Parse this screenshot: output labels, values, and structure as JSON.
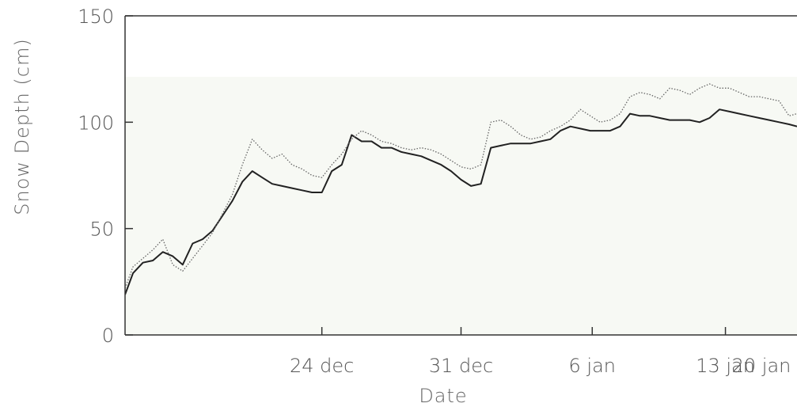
{
  "chart_data": {
    "type": "line",
    "title": "",
    "xlabel": "Date",
    "ylabel": "Snow Depth (cm)",
    "ylim": [
      0,
      150
    ],
    "xlim": [
      -4.9,
      28.9
    ],
    "y_ticks": [
      "0",
      "50",
      "100",
      "150"
    ],
    "x_ticks": [
      {
        "label": "24 dec",
        "x": 5
      },
      {
        "label": "31 dec",
        "x": 12
      },
      {
        "label": "6 jan",
        "x": 18.6
      },
      {
        "label": "13 jan",
        "x": 25.3
      },
      {
        "label": "20 jan",
        "x": 32
      }
    ],
    "grid": false,
    "legend": "none",
    "series": [
      {
        "style": "solid",
        "color": "#222222",
        "x": [
          -4.9,
          -4.5,
          -4.0,
          -3.5,
          -3.0,
          -2.5,
          -2.0,
          -1.5,
          -1.0,
          -0.5,
          0.0,
          0.5,
          1.0,
          1.5,
          2.0,
          2.5,
          3.0,
          3.5,
          4.0,
          4.5,
          5.0,
          5.5,
          6.0,
          6.5,
          7.0,
          7.5,
          8.0,
          8.5,
          9.0,
          9.5,
          10.0,
          10.5,
          11.0,
          11.5,
          12.0,
          12.5,
          13.0,
          13.5,
          14.0,
          14.5,
          15.0,
          15.5,
          16.0,
          16.5,
          17.0,
          17.5,
          18.0,
          18.5,
          19.0,
          19.5,
          20.0,
          20.5,
          21.0,
          21.5,
          22.0,
          22.5,
          23.0,
          23.5,
          24.0,
          24.5,
          25.0,
          25.5,
          26.0,
          26.5,
          27.0,
          27.5,
          28.0,
          28.5,
          28.9
        ],
        "y": [
          19,
          29,
          34,
          35,
          39,
          37,
          33,
          43,
          45,
          49,
          56,
          63,
          72,
          77,
          74,
          71,
          70,
          69,
          68,
          67,
          67,
          77,
          80,
          94,
          91,
          91,
          88,
          88,
          86,
          85,
          84,
          82,
          80,
          77,
          73,
          70,
          71,
          88,
          89,
          90,
          90,
          90,
          91,
          92,
          96,
          98,
          97,
          96,
          96,
          96,
          98,
          104,
          103,
          103,
          102,
          101,
          101,
          101,
          100,
          102,
          106,
          105,
          104,
          103,
          102,
          101,
          100,
          99,
          98
        ]
      },
      {
        "style": "dotted",
        "color": "#666666",
        "x": [
          -4.9,
          -4.5,
          -4.0,
          -3.5,
          -3.0,
          -2.5,
          -2.0,
          -1.5,
          -1.0,
          -0.5,
          0.0,
          0.5,
          1.0,
          1.5,
          2.0,
          2.5,
          3.0,
          3.5,
          4.0,
          4.5,
          5.0,
          5.5,
          6.0,
          6.5,
          7.0,
          7.5,
          8.0,
          8.5,
          9.0,
          9.5,
          10.0,
          10.5,
          11.0,
          11.5,
          12.0,
          12.5,
          13.0,
          13.5,
          14.0,
          14.5,
          15.0,
          15.5,
          16.0,
          16.5,
          17.0,
          17.5,
          18.0,
          18.5,
          19.0,
          19.5,
          20.0,
          20.5,
          21.0,
          21.5,
          22.0,
          22.5,
          23.0,
          23.5,
          24.0,
          24.5,
          25.0,
          25.5,
          26.0,
          26.5,
          27.0,
          27.5,
          28.0,
          28.5,
          28.9
        ],
        "y": [
          22,
          32,
          36,
          40,
          45,
          33,
          30,
          36,
          42,
          48,
          57,
          66,
          80,
          92,
          87,
          83,
          85,
          80,
          78,
          75,
          74,
          80,
          85,
          92,
          96,
          94,
          91,
          90,
          88,
          87,
          88,
          87,
          85,
          82,
          79,
          78,
          80,
          100,
          101,
          98,
          94,
          92,
          93,
          96,
          98,
          101,
          106,
          103,
          100,
          101,
          104,
          112,
          114,
          113,
          111,
          116,
          115,
          113,
          116,
          118,
          116,
          116,
          114,
          112,
          112,
          111,
          110,
          103,
          104
        ]
      }
    ]
  }
}
